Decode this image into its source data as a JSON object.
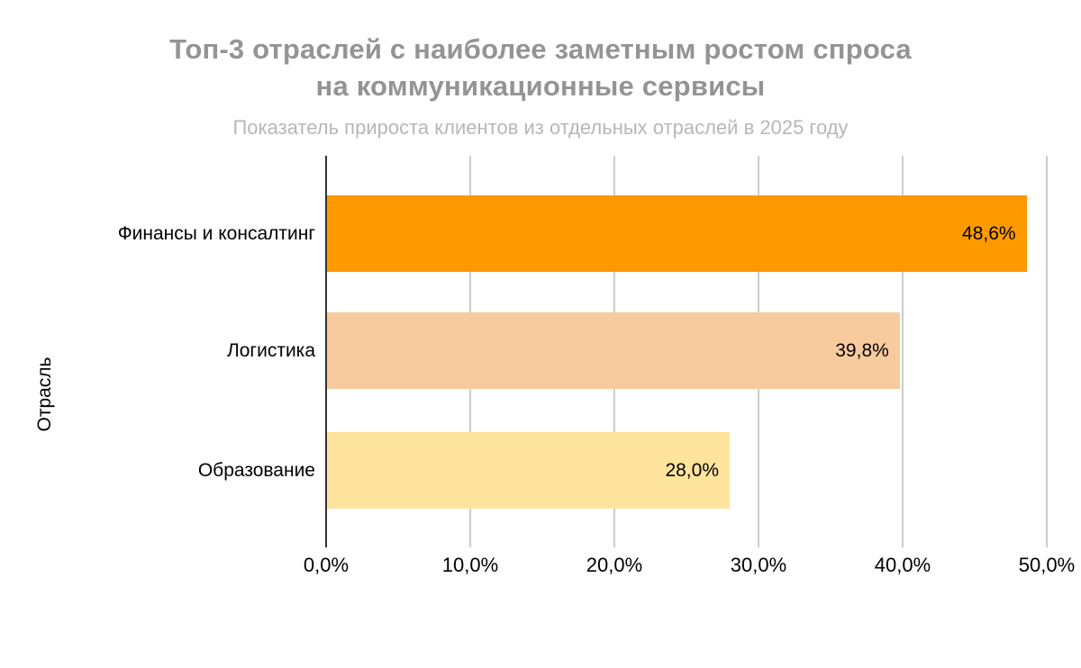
{
  "chart_data": {
    "type": "bar",
    "orientation": "horizontal",
    "title": "Топ-3 отраслей с наиболее заметным ростом спроса на коммуникационные сервисы",
    "title_lines": [
      "Топ-3 отраслей с наиболее заметным ростом спроса",
      "на коммуникационные сервисы"
    ],
    "subtitle": "Показатель прироста клиентов из отдельных отраслей в 2025 году",
    "xlabel": "",
    "ylabel": "Отрасль",
    "categories": [
      "Финансы и консалтинг",
      "Логистика",
      "Образование"
    ],
    "values": [
      48.6,
      39.8,
      28.0
    ],
    "value_labels": [
      "48,6%",
      "39,8%",
      "28,0%"
    ],
    "bar_colors": [
      "#ff9900",
      "#f8cb9e",
      "#fee49c"
    ],
    "x_ticks": {
      "labels": [
        "0,0%",
        "10,0%",
        "20,0%",
        "30,0%",
        "40,0%",
        "50,0%"
      ],
      "values": [
        0,
        10,
        20,
        30,
        40,
        50
      ]
    },
    "xlim": [
      0,
      50
    ],
    "grid": true,
    "legend": "none",
    "styles": {
      "title_color": "#949494",
      "subtitle_color": "#b7b7b7",
      "axis_line_color": "#333333",
      "gridline_color": "#cccccc",
      "label_color": "#000000",
      "background": "#ffffff"
    }
  }
}
